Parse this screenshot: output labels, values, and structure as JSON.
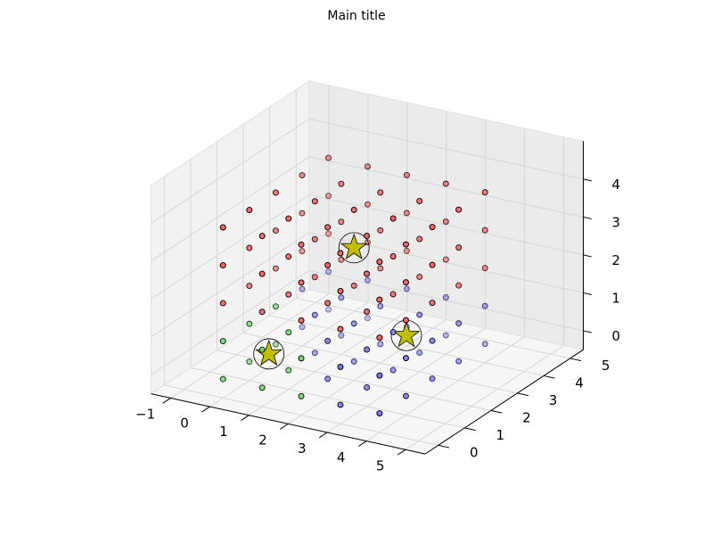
{
  "chart_data": {
    "type": "scatter3d",
    "title": "Main title",
    "xlim": [
      -1.5,
      5.5
    ],
    "ylim": [
      -0.5,
      5.5
    ],
    "zlim": [
      -0.5,
      5
    ],
    "xticks": [
      {
        "value": -1,
        "label": "−1"
      },
      0,
      1,
      2,
      3,
      4,
      5
    ],
    "yticks": [
      0,
      1,
      2,
      3,
      4,
      5
    ],
    "zticks": [
      0,
      1,
      2,
      3,
      4
    ],
    "grid": true,
    "series": [
      {
        "color": "#66dd66",
        "points": [
          [
            0,
            0,
            0
          ],
          [
            0,
            1,
            0
          ],
          [
            0,
            2,
            0
          ],
          [
            1,
            0,
            0
          ],
          [
            1,
            1,
            0
          ],
          [
            2,
            0,
            0
          ],
          [
            0,
            0,
            1
          ],
          [
            0,
            1,
            1
          ],
          [
            0,
            2,
            1
          ],
          [
            1,
            0,
            1
          ],
          [
            1,
            1,
            1
          ],
          [
            2,
            0,
            1
          ]
        ]
      },
      {
        "color": "#7777ff",
        "points": [
          [
            0,
            3,
            0
          ],
          [
            0,
            4,
            0
          ],
          [
            1,
            2,
            0
          ],
          [
            1,
            3,
            0
          ],
          [
            1,
            4,
            0
          ],
          [
            2,
            1,
            0
          ],
          [
            2,
            2,
            0
          ],
          [
            2,
            3,
            0
          ],
          [
            2,
            4,
            0
          ],
          [
            3,
            0,
            0
          ],
          [
            3,
            1,
            0
          ],
          [
            3,
            2,
            0
          ],
          [
            3,
            3,
            0
          ],
          [
            3,
            4,
            0
          ],
          [
            4,
            0,
            0
          ],
          [
            4,
            1,
            0
          ],
          [
            4,
            2,
            0
          ],
          [
            4,
            3,
            0
          ],
          [
            4,
            4,
            0
          ],
          [
            0,
            3,
            1
          ],
          [
            0,
            4,
            1
          ],
          [
            1,
            2,
            1
          ],
          [
            1,
            3,
            1
          ],
          [
            1,
            4,
            1
          ],
          [
            2,
            1,
            1
          ],
          [
            2,
            2,
            1
          ],
          [
            2,
            3,
            1
          ],
          [
            2,
            4,
            1
          ],
          [
            3,
            0,
            1
          ],
          [
            3,
            1,
            1
          ],
          [
            3,
            2,
            1
          ],
          [
            3,
            3,
            1
          ],
          [
            3,
            4,
            1
          ],
          [
            4,
            0,
            1
          ],
          [
            4,
            1,
            1
          ],
          [
            4,
            2,
            1
          ],
          [
            4,
            3,
            1
          ],
          [
            4,
            4,
            1
          ]
        ]
      },
      {
        "color": "#ff6666",
        "points": [
          [
            0,
            0,
            2
          ],
          [
            0,
            1,
            2
          ],
          [
            0,
            2,
            2
          ],
          [
            0,
            3,
            2
          ],
          [
            0,
            4,
            2
          ],
          [
            1,
            0,
            2
          ],
          [
            1,
            1,
            2
          ],
          [
            1,
            2,
            2
          ],
          [
            1,
            3,
            2
          ],
          [
            1,
            4,
            2
          ],
          [
            2,
            0,
            2
          ],
          [
            2,
            1,
            2
          ],
          [
            2,
            2,
            2
          ],
          [
            2,
            3,
            2
          ],
          [
            2,
            4,
            2
          ],
          [
            3,
            0,
            2
          ],
          [
            3,
            1,
            2
          ],
          [
            3,
            2,
            2
          ],
          [
            3,
            3,
            2
          ],
          [
            3,
            4,
            2
          ],
          [
            4,
            0,
            2
          ],
          [
            4,
            1,
            2
          ],
          [
            4,
            2,
            2
          ],
          [
            4,
            3,
            2
          ],
          [
            4,
            4,
            2
          ],
          [
            0,
            0,
            3
          ],
          [
            0,
            1,
            3
          ],
          [
            0,
            2,
            3
          ],
          [
            0,
            3,
            3
          ],
          [
            0,
            4,
            3
          ],
          [
            1,
            0,
            3
          ],
          [
            1,
            1,
            3
          ],
          [
            1,
            2,
            3
          ],
          [
            1,
            3,
            3
          ],
          [
            1,
            4,
            3
          ],
          [
            2,
            0,
            3
          ],
          [
            2,
            1,
            3
          ],
          [
            2,
            2,
            3
          ],
          [
            2,
            3,
            3
          ],
          [
            2,
            4,
            3
          ],
          [
            3,
            0,
            3
          ],
          [
            3,
            1,
            3
          ],
          [
            3,
            2,
            3
          ],
          [
            3,
            3,
            3
          ],
          [
            3,
            4,
            3
          ],
          [
            4,
            0,
            3
          ],
          [
            4,
            1,
            3
          ],
          [
            4,
            2,
            3
          ],
          [
            4,
            3,
            3
          ],
          [
            4,
            4,
            3
          ],
          [
            0,
            0,
            4
          ],
          [
            0,
            1,
            4
          ],
          [
            0,
            2,
            4
          ],
          [
            0,
            3,
            4
          ],
          [
            0,
            4,
            4
          ],
          [
            1,
            0,
            4
          ],
          [
            1,
            1,
            4
          ],
          [
            1,
            2,
            4
          ],
          [
            1,
            3,
            4
          ],
          [
            1,
            4,
            4
          ],
          [
            2,
            0,
            4
          ],
          [
            2,
            1,
            4
          ],
          [
            2,
            2,
            4
          ],
          [
            2,
            3,
            4
          ],
          [
            2,
            4,
            4
          ],
          [
            3,
            0,
            4
          ],
          [
            3,
            1,
            4
          ],
          [
            3,
            2,
            4
          ],
          [
            3,
            3,
            4
          ],
          [
            3,
            4,
            4
          ],
          [
            4,
            0,
            4
          ],
          [
            4,
            1,
            4
          ],
          [
            4,
            2,
            4
          ],
          [
            4,
            3,
            4
          ],
          [
            4,
            4,
            4
          ]
        ]
      }
    ],
    "centers": {
      "color": "#bfbf00",
      "points": [
        [
          0.7,
          0.7,
          0.5
        ],
        [
          2.8,
          2.8,
          0.5
        ],
        [
          2,
          2,
          3
        ]
      ]
    }
  }
}
